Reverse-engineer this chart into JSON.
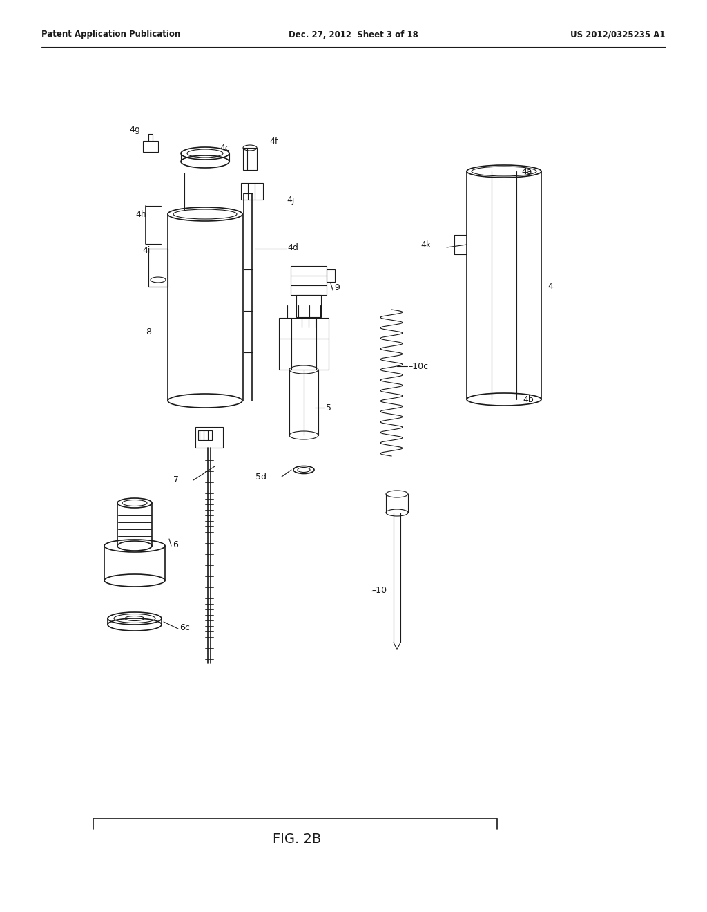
{
  "bg_color": "#ffffff",
  "line_color": "#1a1a1a",
  "header_left": "Patent Application Publication",
  "header_center": "Dec. 27, 2012  Sheet 3 of 18",
  "header_right": "US 2012/0325235 A1",
  "figure_label": "FIG. 2B"
}
